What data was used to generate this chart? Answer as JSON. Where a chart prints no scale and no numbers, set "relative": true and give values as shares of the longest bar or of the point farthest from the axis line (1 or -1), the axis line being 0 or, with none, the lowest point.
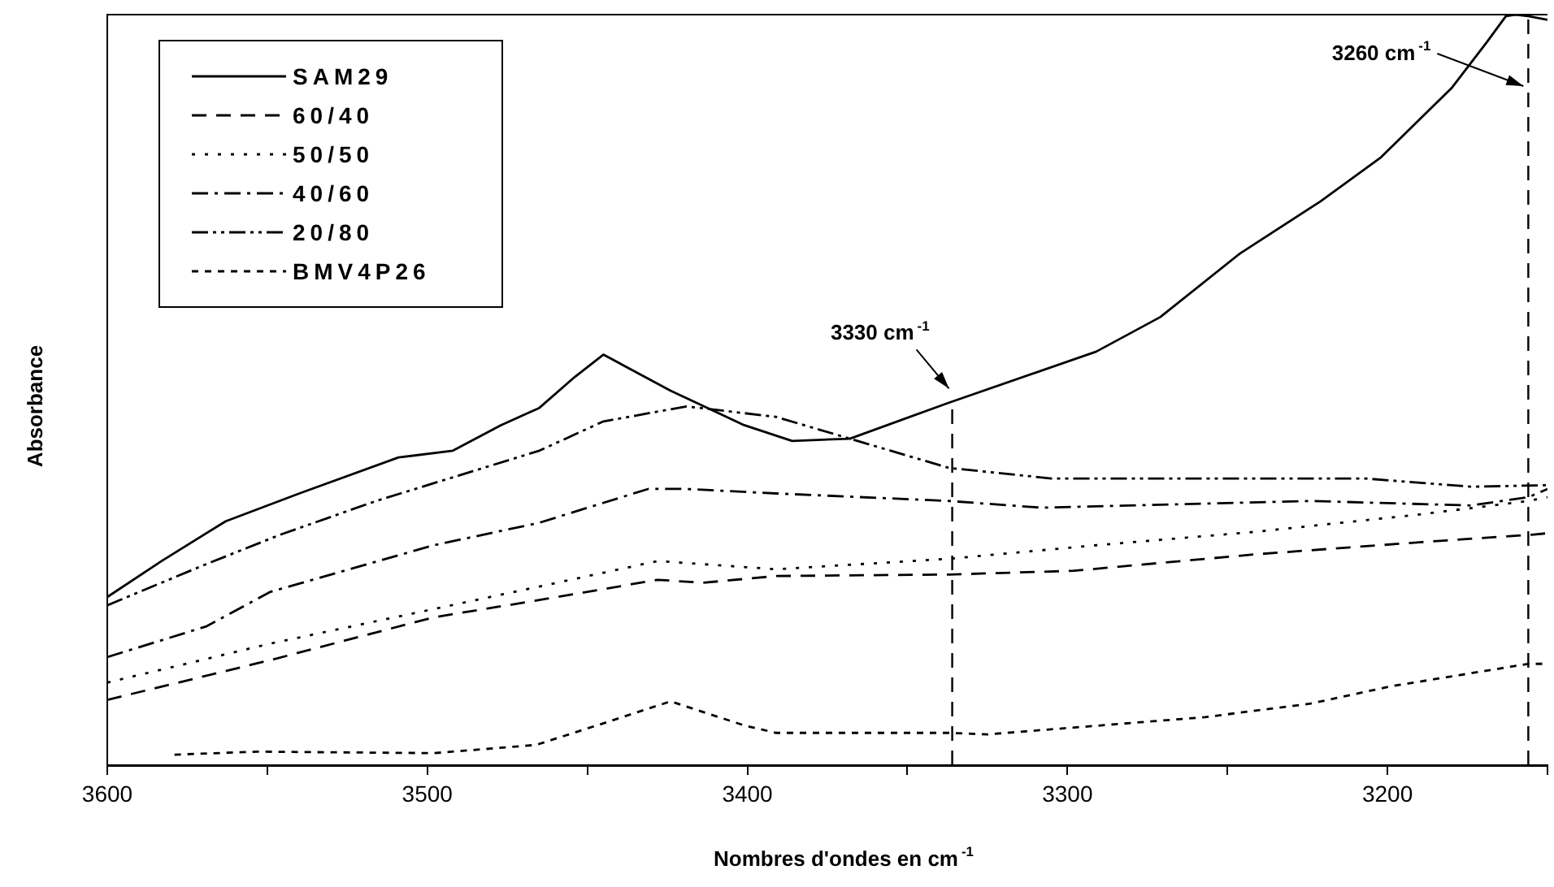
{
  "chart_data": {
    "type": "line",
    "xlabel": "Nombres d'ondes en cm$^{-1}$",
    "ylabel": "Absorbance",
    "relative": true,
    "legend": "top left",
    "grid": false,
    "marker": "none",
    "xlim": [
      3600,
      3150
    ],
    "xticks": [
      3600,
      {
        "value": 3550,
        "label": null
      },
      3500,
      {
        "value": 3450,
        "label": null
      },
      3400,
      {
        "value": 3350,
        "label": null
      },
      3300,
      {
        "value": 3250,
        "label": null
      },
      3200,
      {
        "value": 3150,
        "label": null
      }
    ],
    "series": [
      {
        "name": "SAM29",
        "color": "#000000",
        "line_style": "solid",
        "x": [
          3600,
          3583,
          3563,
          3540,
          3509,
          3492,
          3477,
          3465,
          3454,
          3445,
          3424,
          3401,
          3386,
          3368,
          3337,
          3291,
          3271,
          3246,
          3221,
          3202,
          3180,
          3169,
          3163,
          3160,
          3156,
          3150
        ],
        "values": [
          0.224,
          0.272,
          0.325,
          0.362,
          0.41,
          0.419,
          0.453,
          0.476,
          0.517,
          0.547,
          0.499,
          0.453,
          0.432,
          0.435,
          0.483,
          0.551,
          0.597,
          0.682,
          0.751,
          0.81,
          0.902,
          0.963,
          0.998,
          1,
          0.998,
          0.993
        ]
      },
      {
        "name": "60/40",
        "color": "#000000",
        "line_style": "dashed",
        "x": [
          3600,
          3549,
          3498,
          3465,
          3428,
          3414,
          3391,
          3337,
          3298,
          3241,
          3190,
          3155,
          3150
        ],
        "values": [
          0.087,
          0.14,
          0.197,
          0.22,
          0.247,
          0.243,
          0.252,
          0.254,
          0.259,
          0.281,
          0.297,
          0.307,
          0.309
        ]
      },
      {
        "name": "50/50",
        "color": "#000000",
        "line_style": "dotted",
        "x": [
          3600,
          3549,
          3498,
          3465,
          3428,
          3391,
          3337,
          3291,
          3241,
          3190,
          3156,
          3150
        ],
        "values": [
          0.11,
          0.162,
          0.208,
          0.238,
          0.272,
          0.261,
          0.275,
          0.293,
          0.311,
          0.334,
          0.352,
          0.357
        ]
      },
      {
        "name": "40/60",
        "color": "#000000",
        "line_style": "dashdot",
        "x": [
          3600,
          3569,
          3549,
          3498,
          3465,
          3431,
          3419,
          3391,
          3337,
          3308,
          3224,
          3174,
          3156,
          3150
        ],
        "values": [
          0.144,
          0.185,
          0.231,
          0.293,
          0.323,
          0.368,
          0.368,
          0.362,
          0.352,
          0.343,
          0.352,
          0.346,
          0.357,
          0.368
        ]
      },
      {
        "name": "20/80",
        "color": "#000000",
        "line_style": "dashdotdot",
        "x": [
          3600,
          3569,
          3546,
          3516,
          3465,
          3445,
          3419,
          3391,
          3337,
          3305,
          3241,
          3207,
          3174,
          3150
        ],
        "values": [
          0.213,
          0.268,
          0.307,
          0.352,
          0.419,
          0.458,
          0.478,
          0.464,
          0.396,
          0.382,
          0.382,
          0.382,
          0.371,
          0.373
        ]
      },
      {
        "name": "BMV4P26",
        "color": "#000000",
        "line_style": "shortdash",
        "x": [
          3579,
          3553,
          3498,
          3466,
          3447,
          3424,
          3401,
          3391,
          3337,
          3325,
          3257,
          3224,
          3199,
          3156,
          3150
        ],
        "values": [
          0.014,
          0.018,
          0.016,
          0.027,
          0.053,
          0.085,
          0.053,
          0.043,
          0.043,
          0.041,
          0.064,
          0.082,
          0.105,
          0.135,
          0.135
        ]
      }
    ],
    "ref_lines": [
      {
        "axis": "x",
        "value": 3336,
        "label": "3330 cm$^{-1}$",
        "line_style": "dashed",
        "color": "#000000"
      },
      {
        "axis": "x",
        "value": 3156,
        "label": "3260 cm$^{-1}$",
        "line_style": "dashed",
        "color": "#000000"
      }
    ]
  }
}
